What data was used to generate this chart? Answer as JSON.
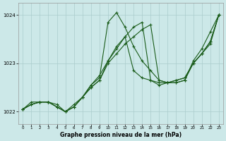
{
  "background_color": "#cce8e8",
  "grid_color": "#aacccc",
  "line_color": "#1a5c1a",
  "marker_color": "#1a5c1a",
  "xlabel": "Graphe pression niveau de la mer (hPa)",
  "ylim": [
    1021.75,
    1024.25
  ],
  "xlim": [
    -0.5,
    23.5
  ],
  "yticks": [
    1022,
    1023,
    1024
  ],
  "xticks": [
    0,
    1,
    2,
    3,
    4,
    5,
    6,
    7,
    8,
    9,
    10,
    11,
    12,
    13,
    14,
    15,
    16,
    17,
    18,
    19,
    20,
    21,
    22,
    23
  ],
  "series": [
    {
      "x": [
        0,
        1,
        2,
        3,
        4,
        5,
        6,
        7,
        8,
        9,
        10,
        11,
        12,
        13,
        14,
        15,
        16,
        17,
        18,
        19,
        20,
        21,
        22,
        23
      ],
      "y": [
        1022.05,
        1022.2,
        1022.2,
        1022.2,
        1022.15,
        1022.0,
        1022.1,
        1022.3,
        1022.55,
        1022.75,
        1023.05,
        1023.3,
        1023.55,
        1023.75,
        1023.85,
        1022.65,
        1022.55,
        1022.6,
        1022.65,
        1022.7,
        1023.0,
        1023.2,
        1023.4,
        1024.0
      ]
    },
    {
      "x": [
        0,
        1,
        2,
        3,
        4,
        5,
        6,
        7,
        8,
        9,
        10,
        11,
        12,
        13,
        14,
        15,
        16,
        17,
        18,
        19,
        20,
        21,
        22,
        23
      ],
      "y": [
        1022.05,
        1022.15,
        1022.2,
        1022.2,
        1022.1,
        1022.0,
        1022.15,
        1022.3,
        1022.55,
        1022.7,
        1023.85,
        1024.05,
        1023.75,
        1023.35,
        1023.05,
        1022.85,
        1022.65,
        1022.6,
        1022.6,
        1022.65,
        1023.05,
        1023.3,
        1023.65,
        1024.0
      ]
    },
    {
      "x": [
        0,
        1,
        2,
        3,
        4,
        5,
        6,
        7,
        8,
        9,
        10,
        11,
        12,
        13,
        14,
        15,
        16,
        17,
        18,
        19,
        20,
        21,
        22,
        23
      ],
      "y": [
        1022.05,
        1022.15,
        1022.2,
        1022.2,
        1022.1,
        1022.0,
        1022.1,
        1022.3,
        1022.5,
        1022.65,
        1023.05,
        1023.35,
        1023.55,
        1022.85,
        1022.7,
        1022.65,
        1022.6,
        1022.6,
        1022.65,
        1022.7,
        1023.0,
        1023.2,
        1023.45,
        1024.0
      ]
    },
    {
      "x": [
        0,
        1,
        2,
        3,
        4,
        5,
        6,
        7,
        8,
        9,
        10,
        11,
        12,
        13,
        14,
        15,
        16,
        17,
        18,
        19,
        20,
        21,
        22,
        23
      ],
      "y": [
        1022.05,
        1022.15,
        1022.2,
        1022.2,
        1022.1,
        1022.0,
        1022.1,
        1022.3,
        1022.5,
        1022.65,
        1023.0,
        1023.2,
        1023.4,
        1023.55,
        1023.7,
        1023.8,
        1022.65,
        1022.6,
        1022.6,
        1022.65,
        1023.0,
        1023.2,
        1023.45,
        1024.0
      ]
    }
  ]
}
